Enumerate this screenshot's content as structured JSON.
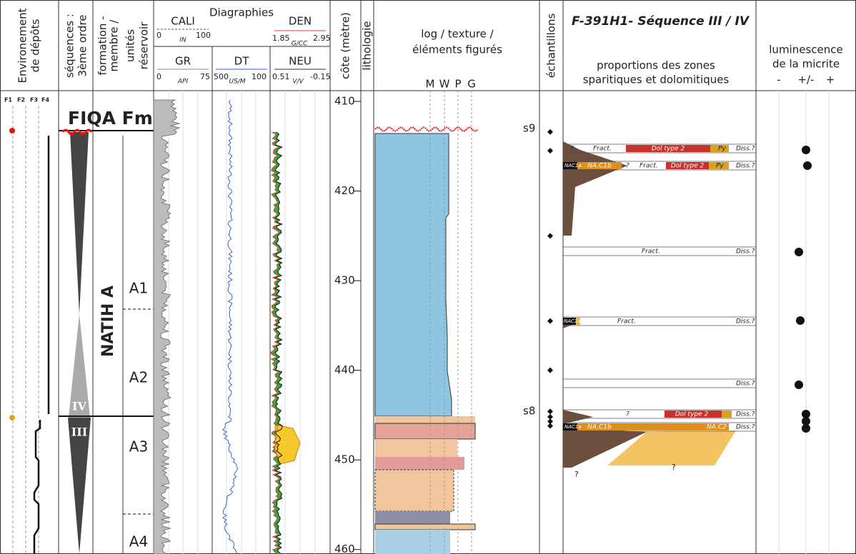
{
  "header": {
    "environment": [
      "Environement",
      "de dépôts"
    ],
    "sequences": [
      "séquences :",
      "3ème ordre"
    ],
    "formation": [
      "formation -",
      "membre /"
    ],
    "units": [
      "unités",
      "réservoir"
    ],
    "logs": {
      "title": "Diagraphies",
      "cali": [
        "CALI",
        "0",
        "IN",
        "100"
      ],
      "gr": [
        "GR",
        "0",
        "API",
        "75"
      ],
      "dt": [
        "DT",
        "500",
        "US/M",
        "100"
      ],
      "den": [
        "DEN",
        "1.85",
        "G/CC",
        "2.95"
      ],
      "neu": [
        "NEU",
        "0.51",
        "V/V",
        "-0.15"
      ]
    },
    "depth": "côte (mètre)",
    "lithology": "lithologie",
    "texture": [
      "log / texture /",
      "éléments figurés"
    ],
    "texture_classes": [
      "M",
      "W",
      "P",
      "G"
    ],
    "samples": "échantillons",
    "title": "F-391H1- Séquence III / IV",
    "proportions": [
      "proportions des zones",
      "sparitiques et dolomitiques"
    ],
    "luminescence": [
      "luminescence",
      "de la micrite"
    ],
    "luminescence_scale": [
      "-",
      "+/-",
      "+"
    ]
  },
  "facies": [
    "F1",
    "F2",
    "F3",
    "F4"
  ],
  "formation": "FIQA Fm.",
  "member": "NATIH A",
  "sequences": [
    "IV",
    "III"
  ],
  "units": [
    "A1",
    "A2",
    "A3",
    "A4"
  ],
  "depth_axis": {
    "ylim": [
      408.8,
      460.5
    ],
    "ticks": [
      410,
      420,
      430,
      440,
      450,
      460
    ]
  },
  "surfaces": [
    "s9",
    "s8"
  ],
  "sample_depths": [
    413.4,
    415.5,
    425,
    434.5,
    440,
    444.6,
    445.2,
    445.7,
    446.2
  ],
  "proportion_rows": [
    [
      "?",
      "Fract.",
      "Dol type 2",
      "Py",
      "Diss.?"
    ],
    [
      "NAC1a",
      "NA.C1b",
      "?",
      "Fract.",
      "Dol type 2",
      "Py",
      "Diss.?"
    ],
    [
      "Fract.",
      "Diss.?"
    ],
    [
      "NAC1a",
      "Fract.",
      "Diss.?"
    ],
    [
      "Diss.?"
    ],
    [
      "?",
      "Dol type 2",
      "Diss.?"
    ],
    [
      "NAC1a",
      "NA.C1b",
      "NA.C2",
      "Diss.?"
    ]
  ],
  "proportion_notes": [
    "?",
    "?"
  ]
}
